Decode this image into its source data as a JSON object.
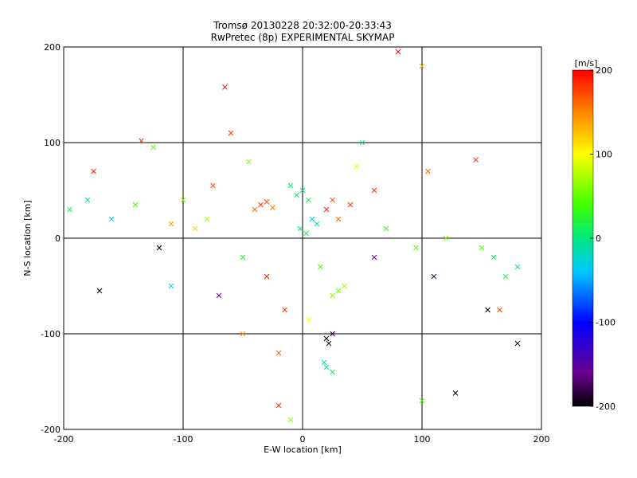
{
  "chart_data": {
    "type": "scatter",
    "title": "Tromsø 20130228 20:32:00-20:33:43",
    "subtitle": "RwPretec (8p) EXPERIMENTAL SKYMAP",
    "xlabel": "E-W location [km]",
    "ylabel": "N-S location [km]",
    "xlim": [
      -200,
      200
    ],
    "ylim": [
      -200,
      200
    ],
    "xticks": [
      "-200",
      "-100",
      "0",
      "100",
      "200"
    ],
    "yticks": [
      "-200",
      "-100",
      "0",
      "100",
      "200"
    ],
    "grid": true,
    "colorbar": {
      "unit": "[m/s]",
      "range": [
        -200,
        200
      ],
      "ticks": [
        "200",
        "100",
        "0",
        "-100",
        "-200"
      ],
      "colormap": "rainbow-black-to-red"
    },
    "marker_types": [
      "cross",
      "dot"
    ],
    "points": [
      [
        -35,
        35,
        180,
        "x"
      ],
      [
        -40,
        30,
        160,
        "x"
      ],
      [
        -30,
        38,
        170,
        "x"
      ],
      [
        -25,
        32,
        150,
        "x"
      ],
      [
        -5,
        45,
        10,
        "x"
      ],
      [
        0,
        50,
        -10,
        "x"
      ],
      [
        5,
        40,
        20,
        "x"
      ],
      [
        -10,
        55,
        5,
        "x"
      ],
      [
        8,
        20,
        -20,
        "x"
      ],
      [
        -2,
        10,
        0,
        "x"
      ],
      [
        3,
        5,
        15,
        "x"
      ],
      [
        12,
        15,
        -5,
        "x"
      ],
      [
        20,
        30,
        190,
        "x"
      ],
      [
        25,
        40,
        170,
        "x"
      ],
      [
        30,
        20,
        160,
        "x"
      ],
      [
        40,
        35,
        180,
        "x"
      ],
      [
        15,
        -30,
        40,
        "x"
      ],
      [
        25,
        -60,
        60,
        "x"
      ],
      [
        30,
        -55,
        50,
        "x"
      ],
      [
        35,
        -50,
        70,
        "x"
      ],
      [
        20,
        -105,
        -200,
        "x"
      ],
      [
        25,
        -100,
        -180,
        "x"
      ],
      [
        22,
        -110,
        -190,
        "x"
      ],
      [
        20,
        -135,
        -10,
        "x"
      ],
      [
        25,
        -140,
        10,
        "x"
      ],
      [
        18,
        -130,
        0,
        "x"
      ],
      [
        -100,
        40,
        60,
        "x"
      ],
      [
        -90,
        10,
        120,
        "x"
      ],
      [
        -110,
        -50,
        -30,
        "x"
      ],
      [
        -140,
        35,
        40,
        "x"
      ],
      [
        -160,
        20,
        -20,
        "x"
      ],
      [
        -180,
        40,
        0,
        "x"
      ],
      [
        -195,
        30,
        10,
        "x"
      ],
      [
        -175,
        70,
        190,
        "x"
      ],
      [
        -135,
        102,
        180,
        "x"
      ],
      [
        -125,
        95,
        50,
        "x"
      ],
      [
        -65,
        158,
        190,
        "x"
      ],
      [
        80,
        195,
        200,
        "x"
      ],
      [
        100,
        180,
        130,
        "x"
      ],
      [
        145,
        82,
        180,
        "x"
      ],
      [
        105,
        70,
        160,
        "x"
      ],
      [
        120,
        0,
        60,
        "x"
      ],
      [
        160,
        -20,
        10,
        "x"
      ],
      [
        170,
        -40,
        20,
        "x"
      ],
      [
        180,
        -30,
        -10,
        "x"
      ],
      [
        150,
        -10,
        40,
        "x"
      ],
      [
        165,
        -75,
        170,
        "x"
      ],
      [
        155,
        -75,
        -200,
        "x"
      ],
      [
        180,
        -110,
        -200,
        "x"
      ],
      [
        128,
        -162,
        -200,
        "x"
      ],
      [
        100,
        -170,
        40,
        "x"
      ],
      [
        -60,
        110,
        180,
        "x"
      ],
      [
        -45,
        80,
        60,
        "x"
      ],
      [
        -75,
        55,
        170,
        "x"
      ],
      [
        -50,
        -100,
        140,
        "x"
      ],
      [
        -20,
        -120,
        160,
        "x"
      ],
      [
        5,
        -85,
        100,
        "x"
      ],
      [
        -15,
        -75,
        180,
        "x"
      ],
      [
        -30,
        -40,
        190,
        "x"
      ],
      [
        -50,
        -20,
        20,
        "x"
      ],
      [
        -70,
        -60,
        -160,
        "x"
      ],
      [
        -80,
        20,
        70,
        "x"
      ],
      [
        60,
        -20,
        -150,
        "x"
      ],
      [
        70,
        10,
        30,
        "x"
      ],
      [
        60,
        50,
        180,
        "x"
      ],
      [
        45,
        75,
        90,
        "x"
      ],
      [
        -20,
        -175,
        180,
        "x"
      ],
      [
        -10,
        -190,
        60,
        "x"
      ],
      [
        50,
        100,
        -10,
        "x"
      ],
      [
        -120,
        -10,
        -200,
        "x"
      ],
      [
        -170,
        -55,
        -200,
        "x"
      ],
      [
        95,
        -10,
        50,
        "x"
      ],
      [
        -110,
        15,
        140,
        "x"
      ],
      [
        110,
        -40,
        -180,
        "x"
      ]
    ]
  }
}
